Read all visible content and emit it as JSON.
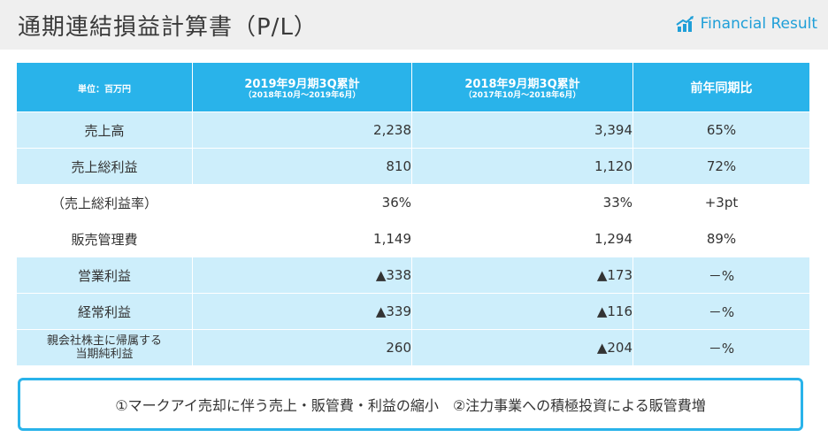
{
  "header": {
    "title": "通期連結損益計算書（P/L）",
    "badge_label": "Financial Result",
    "badge_icon": "chart-up-icon"
  },
  "table": {
    "columns": [
      {
        "label": "単位：百万円",
        "sub": ""
      },
      {
        "label": "2019年9月期3Q累計",
        "sub": "（2018年10月～2019年6月）"
      },
      {
        "label": "2018年9月期3Q累計",
        "sub": "（2017年10月～2018年6月）"
      },
      {
        "label": "前年同期比",
        "sub": ""
      }
    ],
    "rows": [
      {
        "label": "売上高",
        "current": "2,238",
        "previous": "3,394",
        "yoy": "65%",
        "highlight": true
      },
      {
        "label": "売上総利益",
        "current": "810",
        "previous": "1,120",
        "yoy": "72%",
        "highlight": true
      },
      {
        "label": "（売上総利益率）",
        "current": "36%",
        "previous": "33%",
        "yoy": "+3pt",
        "highlight": false
      },
      {
        "label": "販売管理費",
        "current": "1,149",
        "previous": "1,294",
        "yoy": "89%",
        "highlight": false
      },
      {
        "label": "営業利益",
        "current": "▲338",
        "previous": "▲173",
        "yoy": "－%",
        "highlight": true
      },
      {
        "label": "経常利益",
        "current": "▲339",
        "previous": "▲116",
        "yoy": "－%",
        "highlight": true
      },
      {
        "label": "親会社株主に帰属する\n当期純利益",
        "current": "260",
        "previous": "▲204",
        "yoy": "－%",
        "highlight": true
      }
    ]
  },
  "note": {
    "text": "①マークアイ売却に伴う売上・販管費・利益の縮小　②注力事業への積極投資による販管費増"
  },
  "colors": {
    "accent": "#29b3ea",
    "row_highlight": "#cdeefb",
    "header_bg": "#efefef"
  }
}
